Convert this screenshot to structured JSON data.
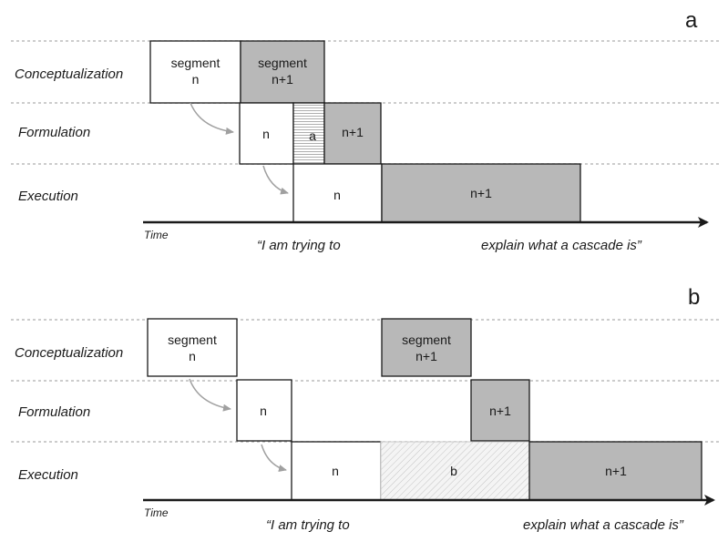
{
  "colors": {
    "grey_fill": "#b8b8b8",
    "white_fill": "#ffffff",
    "stroke": "#1a1a1a",
    "dotted": "#bbbbbb",
    "arrow": "#a0a0a0"
  },
  "panel_a": {
    "letter": "a",
    "rows": {
      "conceptualization": "Conceptualization",
      "formulation": "Formulation",
      "execution": "Execution"
    },
    "boxes": {
      "concept_n_line1": "segment",
      "concept_n_line2": "n",
      "concept_n1_line1": "segment",
      "concept_n1_line2": "n+1",
      "form_n": "n",
      "form_a": "a",
      "form_n1": "n+1",
      "exec_n": "n",
      "exec_n1": "n+1"
    },
    "time": "Time",
    "quote_left": "“I am trying to",
    "quote_right": "explain what a cascade is”"
  },
  "panel_b": {
    "letter": "b",
    "rows": {
      "conceptualization": "Conceptualization",
      "formulation": "Formulation",
      "execution": "Execution"
    },
    "boxes": {
      "concept_n_line1": "segment",
      "concept_n_line2": "n",
      "concept_n1_line1": "segment",
      "concept_n1_line2": "n+1",
      "form_n": "n",
      "form_n1": "n+1",
      "exec_n": "n",
      "exec_b": "b",
      "exec_n1": "n+1"
    },
    "time": "Time",
    "quote_left": "“I am trying to",
    "quote_right": "explain what a cascade is”"
  }
}
